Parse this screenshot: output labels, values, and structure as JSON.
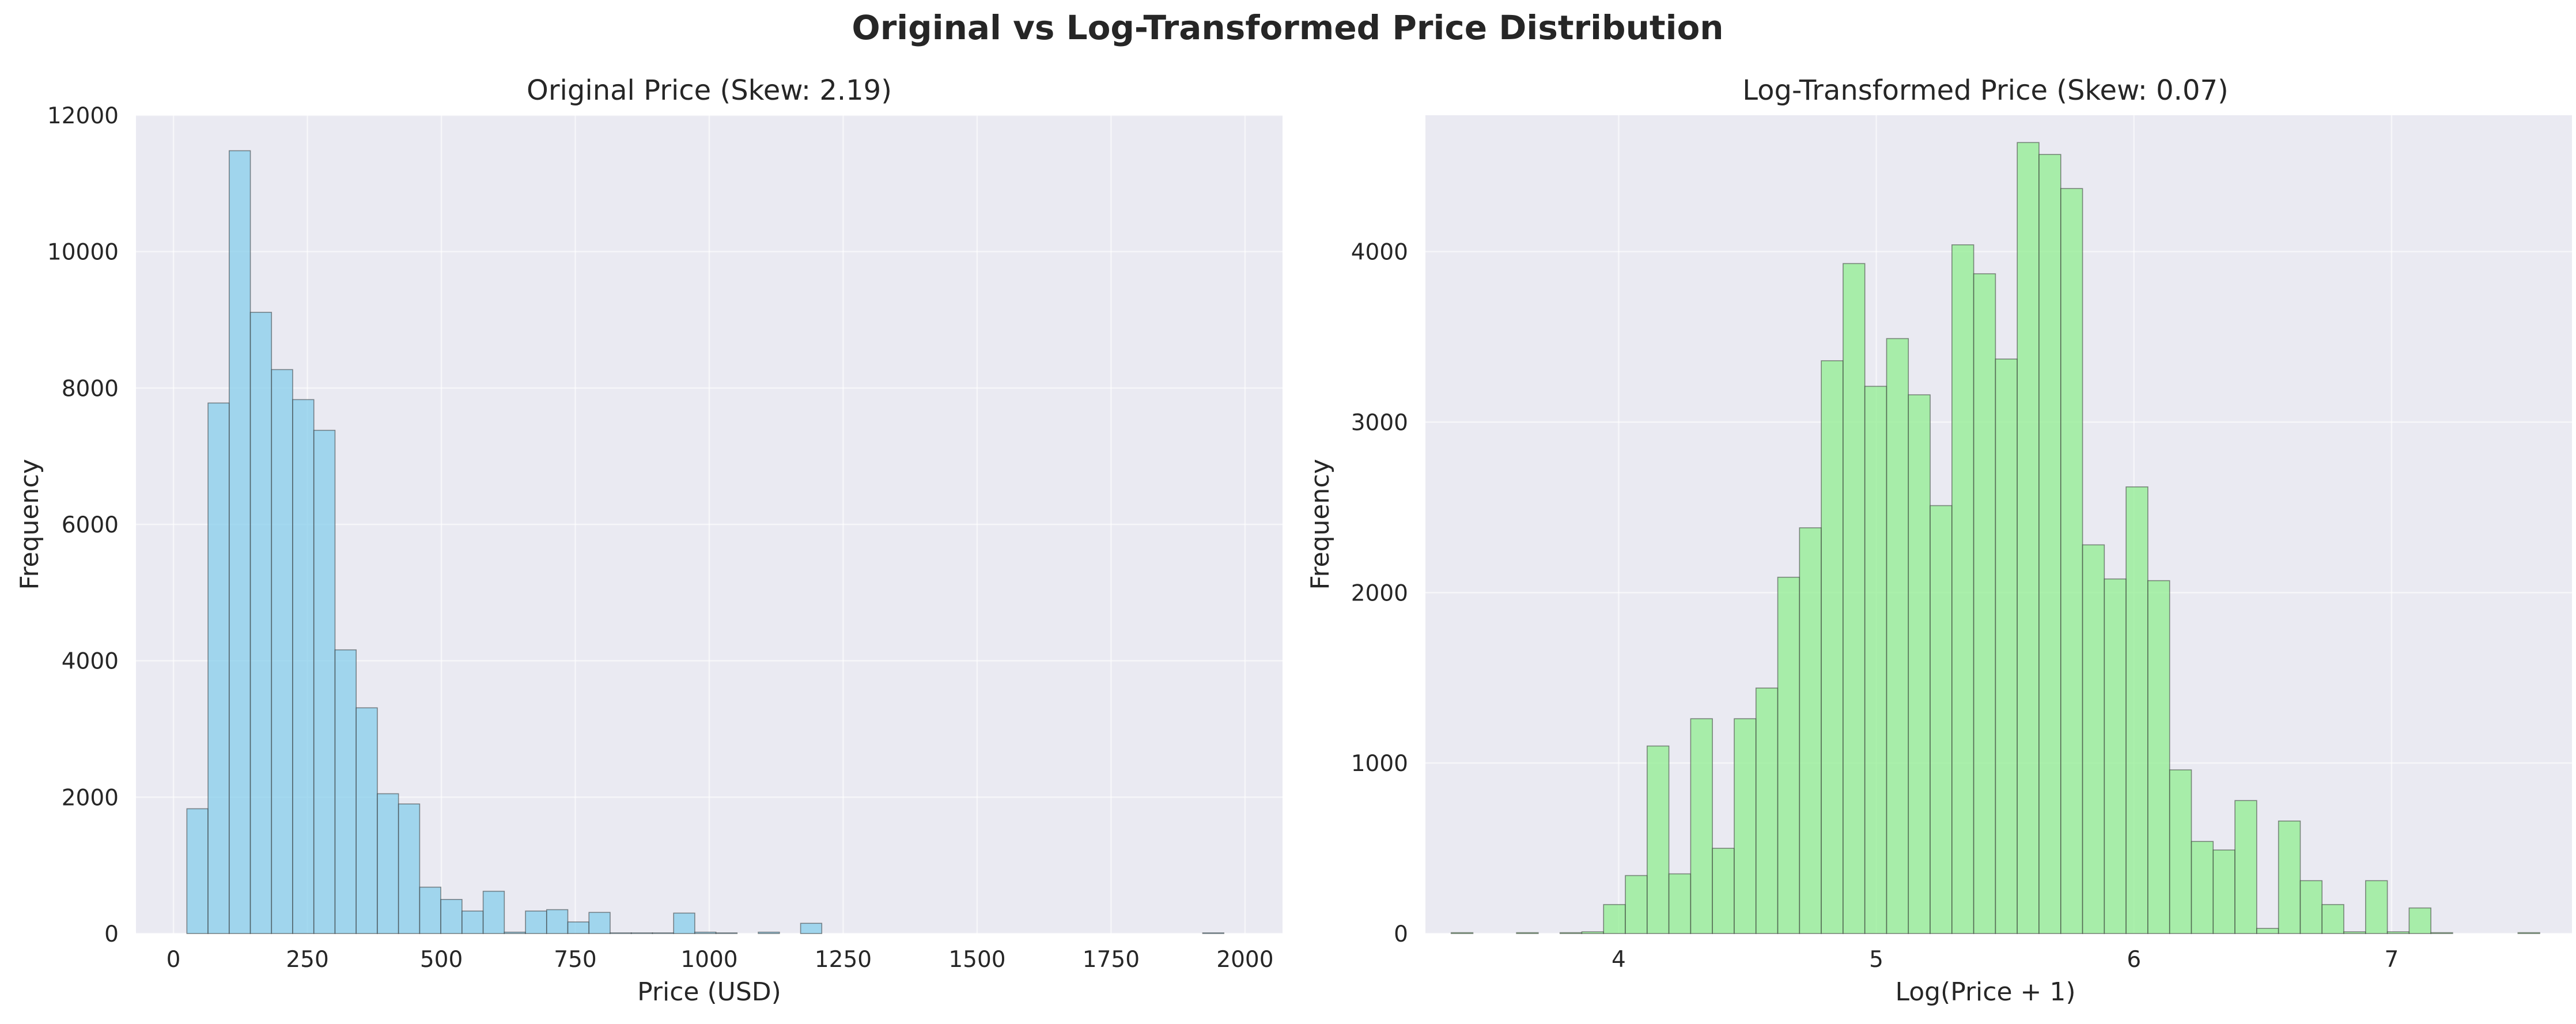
{
  "figure": {
    "suptitle": "Original vs Log-Transformed Price Distribution"
  },
  "chart_data": [
    {
      "type": "bar",
      "subtype": "histogram",
      "title": "Original Price (Skew: 2.19)",
      "xlabel": "Price (USD)",
      "ylabel": "Frequency",
      "xlim": [
        -70,
        2070
      ],
      "ylim": [
        0,
        12000
      ],
      "xticks": [
        0,
        250,
        500,
        750,
        1000,
        1250,
        1500,
        1750,
        2000
      ],
      "yticks": [
        0,
        2000,
        4000,
        6000,
        8000,
        10000,
        12000
      ],
      "grid": true,
      "bar_color": "#87ceeb",
      "bin_start": 25,
      "bin_width": 39.5,
      "values": [
        1830,
        7780,
        11480,
        9110,
        8270,
        7830,
        7380,
        4160,
        3310,
        2050,
        1900,
        680,
        500,
        330,
        620,
        20,
        330,
        350,
        170,
        310,
        10,
        10,
        10,
        300,
        20,
        10,
        0,
        20,
        0,
        150,
        0,
        0,
        0,
        0,
        0,
        0,
        0,
        0,
        0,
        0,
        0,
        0,
        0,
        0,
        0,
        0,
        0,
        0,
        10
      ]
    },
    {
      "type": "bar",
      "subtype": "histogram",
      "title": "Log-Transformed Price (Skew: 0.07)",
      "xlabel": "Log(Price + 1)",
      "ylabel": "Frequency",
      "xlim": [
        3.25,
        7.7
      ],
      "ylim": [
        0,
        4800
      ],
      "xticks": [
        4,
        5,
        6,
        7
      ],
      "yticks": [
        0,
        1000,
        2000,
        3000,
        4000
      ],
      "grid": true,
      "bar_color": "#90ee90",
      "bin_start": 3.35,
      "bin_width": 0.0845,
      "values": [
        5,
        0,
        0,
        5,
        0,
        5,
        10,
        170,
        340,
        1100,
        350,
        1260,
        500,
        1260,
        1440,
        2090,
        2380,
        3360,
        3930,
        3210,
        3490,
        3160,
        2510,
        4040,
        3870,
        3370,
        4640,
        4570,
        4370,
        2280,
        2080,
        2620,
        2070,
        960,
        540,
        490,
        780,
        30,
        660,
        310,
        170,
        10,
        310,
        10,
        150,
        5,
        0,
        0,
        0,
        5
      ]
    }
  ]
}
